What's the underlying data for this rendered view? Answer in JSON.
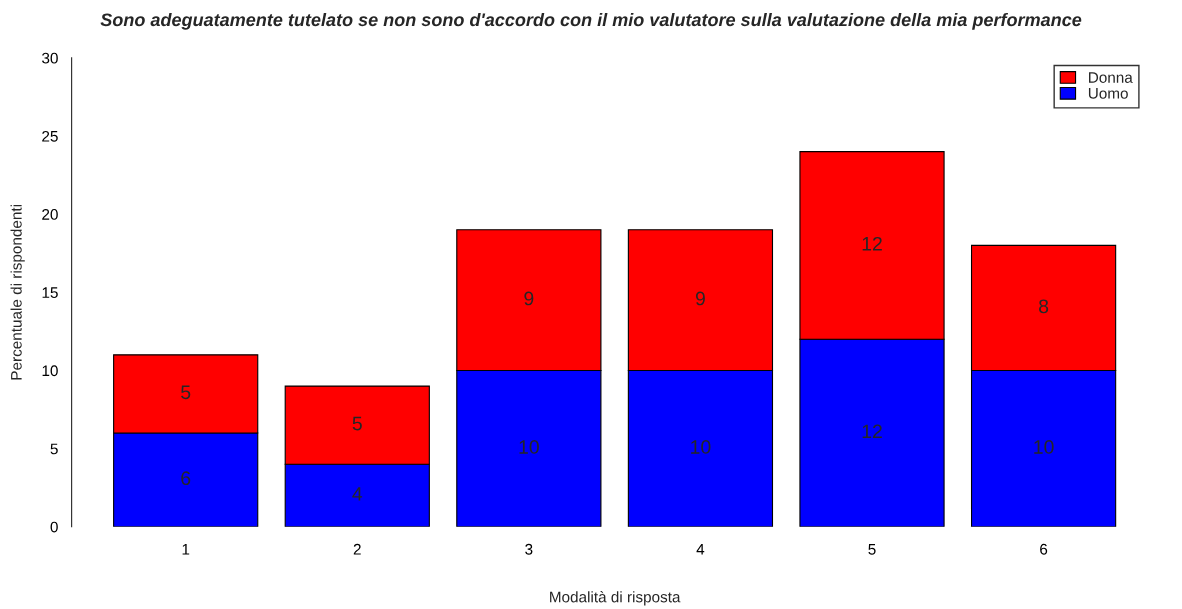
{
  "chart_data": {
    "type": "bar",
    "title": "Sono adeguatamente tutelato se non sono d'accordo con il mio valutatore sulla valutazione della mia performance",
    "xlabel": "Modalità di risposta",
    "ylabel": "Percentuale di rispondenti",
    "categories": [
      "1",
      "2",
      "3",
      "4",
      "5",
      "6"
    ],
    "stacked": true,
    "series": [
      {
        "name": "Uomo",
        "color": "#0000ff",
        "values": [
          6,
          4,
          10,
          10,
          12,
          10
        ]
      },
      {
        "name": "Donna",
        "color": "#ff0000",
        "values": [
          5,
          5,
          9,
          9,
          12,
          8
        ]
      }
    ],
    "ylim": [
      0,
      30
    ],
    "yticks": [
      0,
      5,
      10,
      15,
      20,
      25,
      30
    ],
    "data_labels": true,
    "legend": "top right"
  }
}
